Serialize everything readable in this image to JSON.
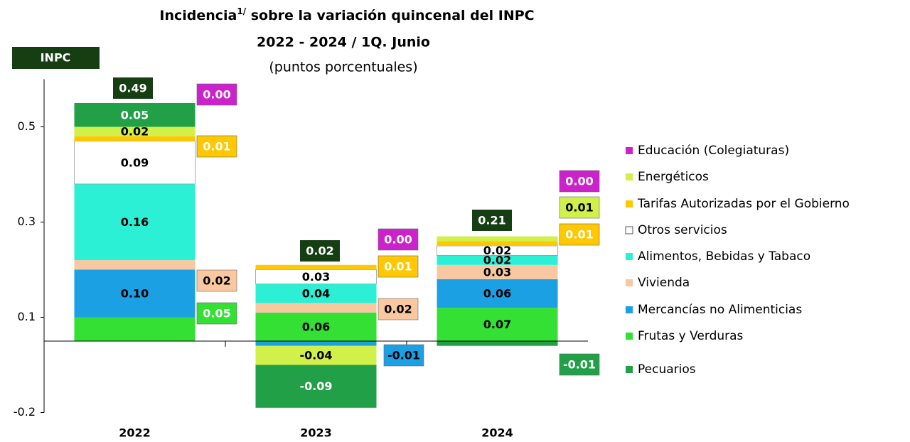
{
  "chart_data": {
    "type": "stacked_bar",
    "title": "Incidencia",
    "title_note": "1/",
    "title_rest": " sobre la variación quincenal del INPC",
    "subtitle": "2022 - 2024 / 1Q. Junio",
    "unit_label": "(puntos porcentuales)",
    "categories": [
      "2022",
      "2023",
      "2024"
    ],
    "ylim": [
      -0.15,
      0.55
    ],
    "yticks": [
      {
        "value": -0.15,
        "label": "-0.2"
      },
      {
        "value": 0.05,
        "label": "0.1"
      },
      {
        "value": 0.25,
        "label": "0.3"
      },
      {
        "value": 0.45,
        "label": "0.5"
      }
    ],
    "series": [
      {
        "name": "Pecuarios",
        "color": "#22a048",
        "values": [
          0.05,
          -0.09,
          -0.01
        ],
        "value_labels": [
          "0.05",
          "-0.09",
          "-0.01"
        ]
      },
      {
        "name": "Frutas y Verduras",
        "color": "#33e033",
        "values": [
          0.05,
          0.06,
          0.07
        ],
        "value_labels": [
          "0.05",
          "0.06",
          "0.07"
        ]
      },
      {
        "name": "Mercancías no Alimenticias",
        "color": "#1ba0e4",
        "values": [
          0.1,
          -0.01,
          0.06
        ],
        "value_labels": [
          "0.10",
          "-0.01",
          "0.06"
        ]
      },
      {
        "name": "Vivienda",
        "color": "#f9c8a0",
        "values": [
          0.02,
          0.02,
          0.03
        ],
        "value_labels": [
          "0.02",
          "0.02",
          "0.03"
        ]
      },
      {
        "name": "Alimentos, Bebidas y Tabaco",
        "color": "#2cf0d6",
        "values": [
          0.16,
          0.04,
          0.02
        ],
        "value_labels": [
          "0.16",
          "0.04",
          "0.02"
        ]
      },
      {
        "name": "Otros servicios",
        "color": "#ffffff",
        "values": [
          0.09,
          0.03,
          0.02
        ],
        "value_labels": [
          "0.09",
          "0.03",
          "0.02"
        ]
      },
      {
        "name": "Tarifas Autorizadas por el Gobierno",
        "color": "#ffc800",
        "values": [
          0.01,
          0.01,
          0.01
        ],
        "value_labels": [
          "0.01",
          "0.01",
          "0.01"
        ]
      },
      {
        "name": "Energéticos",
        "color": "#d2f04a",
        "values": [
          0.02,
          -0.04,
          0.01
        ],
        "value_labels": [
          "0.02",
          "-0.04",
          "0.01"
        ]
      },
      {
        "name": "Educación (Colegiaturas)",
        "color": "#cc22cc",
        "values": [
          0,
          0,
          0
        ],
        "value_labels": [
          "0.00",
          "0.00",
          "0.00"
        ]
      }
    ],
    "totals": {
      "name": "INPC",
      "color": "#153f12",
      "values": [
        0.49,
        0.02,
        0.21
      ]
    }
  }
}
